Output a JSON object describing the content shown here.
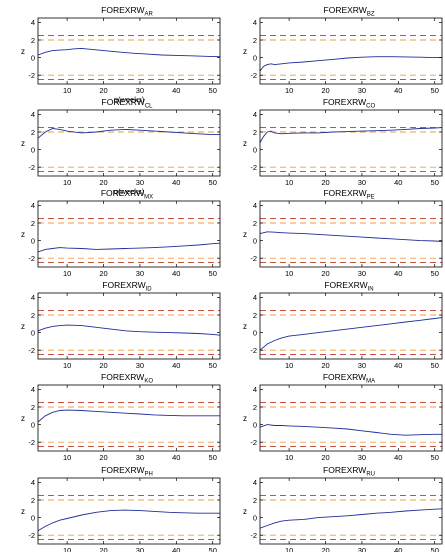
{
  "chart_data": [
    {
      "type": "line",
      "title": "FOREXRW",
      "subscript": "AR",
      "xlabel": "q(weeks)",
      "ylabel": "z",
      "xlim": [
        2,
        52
      ],
      "ylim": [
        -3,
        4.5
      ],
      "x": [
        2,
        4,
        6,
        8,
        10,
        12,
        14,
        16,
        20,
        24,
        28,
        32,
        36,
        40,
        44,
        48,
        52
      ],
      "series": [
        {
          "values": [
            0.3,
            0.6,
            0.8,
            0.85,
            0.9,
            1.0,
            1.05,
            0.95,
            0.8,
            0.65,
            0.5,
            0.4,
            0.3,
            0.25,
            0.2,
            0.15,
            0.1
          ]
        }
      ],
      "bands": [
        2.5,
        2.0,
        -2.0,
        -2.5
      ]
    },
    {
      "type": "line",
      "title": "FOREXRW",
      "subscript": "BZ",
      "xlabel": "",
      "ylabel": "z",
      "xlim": [
        2,
        52
      ],
      "ylim": [
        -3,
        4.5
      ],
      "x": [
        2,
        3,
        4,
        5,
        6,
        8,
        10,
        14,
        18,
        22,
        26,
        30,
        34,
        38,
        42,
        46,
        50,
        52
      ],
      "series": [
        {
          "values": [
            -1.5,
            -1.0,
            -0.8,
            -0.7,
            -0.8,
            -0.7,
            -0.6,
            -0.5,
            -0.35,
            -0.2,
            -0.05,
            0.05,
            0.1,
            0.1,
            0.08,
            0.05,
            0.0,
            0.0
          ]
        }
      ],
      "bands": [
        2.5,
        2.0,
        -2.0,
        -2.5
      ]
    },
    {
      "type": "line",
      "title": "FOREXRW",
      "subscript": "CL",
      "xlabel": "q(weeks)",
      "ylabel": "z",
      "xlim": [
        2,
        52
      ],
      "ylim": [
        -3,
        4.5
      ],
      "x": [
        2,
        4,
        6,
        8,
        10,
        14,
        18,
        22,
        26,
        30,
        34,
        38,
        42,
        46,
        50,
        52
      ],
      "series": [
        {
          "values": [
            1.3,
            2.0,
            2.4,
            2.3,
            2.1,
            1.9,
            2.0,
            2.2,
            2.3,
            2.2,
            2.1,
            2.0,
            1.9,
            1.8,
            1.7,
            1.7
          ]
        }
      ],
      "bands": [
        2.5,
        2.0,
        -2.0,
        -2.5
      ]
    },
    {
      "type": "line",
      "title": "FOREXRW",
      "subscript": "CO",
      "xlabel": "",
      "ylabel": "z",
      "xlim": [
        2,
        52
      ],
      "ylim": [
        -3,
        4.5
      ],
      "x": [
        2,
        3,
        4,
        5,
        6,
        8,
        10,
        14,
        18,
        22,
        26,
        30,
        34,
        38,
        42,
        46,
        50,
        52
      ],
      "series": [
        {
          "values": [
            0.8,
            1.5,
            2.0,
            2.1,
            1.9,
            1.8,
            1.85,
            1.9,
            1.9,
            2.0,
            2.05,
            2.1,
            2.15,
            2.2,
            2.3,
            2.4,
            2.45,
            2.5
          ]
        }
      ],
      "bands": [
        2.5,
        2.0,
        -2.0,
        -2.5
      ]
    },
    {
      "type": "line",
      "title": "FOREXRW",
      "subscript": "MX",
      "xlabel": "",
      "ylabel": "z",
      "xlim": [
        2,
        52
      ],
      "ylim": [
        -3,
        4.5
      ],
      "x": [
        2,
        4,
        6,
        8,
        10,
        14,
        18,
        22,
        26,
        30,
        34,
        38,
        42,
        46,
        50,
        52
      ],
      "series": [
        {
          "values": [
            -1.3,
            -1.0,
            -0.9,
            -0.8,
            -0.85,
            -0.9,
            -1.0,
            -0.95,
            -0.9,
            -0.85,
            -0.8,
            -0.7,
            -0.6,
            -0.5,
            -0.35,
            -0.3
          ]
        }
      ],
      "bands": [
        2.5,
        2.0,
        -2.0,
        -2.5
      ]
    },
    {
      "type": "line",
      "title": "FOREXRW",
      "subscript": "PE",
      "xlabel": "",
      "ylabel": "z",
      "xlim": [
        2,
        52
      ],
      "ylim": [
        -3,
        4.5
      ],
      "x": [
        2,
        4,
        6,
        8,
        10,
        14,
        18,
        22,
        26,
        30,
        34,
        38,
        42,
        46,
        50,
        52
      ],
      "series": [
        {
          "values": [
            0.8,
            1.0,
            0.95,
            0.9,
            0.85,
            0.8,
            0.7,
            0.6,
            0.5,
            0.4,
            0.3,
            0.2,
            0.1,
            0.0,
            -0.05,
            -0.1
          ]
        }
      ],
      "bands": [
        2.5,
        2.0,
        -2.0,
        -2.5
      ]
    },
    {
      "type": "line",
      "title": "FOREXRW",
      "subscript": "ID",
      "xlabel": "",
      "ylabel": "z",
      "xlim": [
        2,
        52
      ],
      "ylim": [
        -3,
        4.5
      ],
      "x": [
        2,
        4,
        6,
        8,
        10,
        14,
        18,
        22,
        26,
        30,
        34,
        38,
        42,
        46,
        50,
        52
      ],
      "series": [
        {
          "values": [
            0.2,
            0.5,
            0.7,
            0.8,
            0.85,
            0.8,
            0.6,
            0.4,
            0.2,
            0.1,
            0.05,
            0.0,
            -0.05,
            -0.1,
            -0.2,
            -0.3
          ]
        }
      ],
      "bands": [
        2.5,
        2.0,
        -2.0,
        -2.5
      ]
    },
    {
      "type": "line",
      "title": "FOREXRW",
      "subscript": "IN",
      "xlabel": "",
      "ylabel": "z",
      "xlim": [
        2,
        52
      ],
      "ylim": [
        -3,
        4.5
      ],
      "x": [
        2,
        4,
        6,
        8,
        10,
        14,
        18,
        22,
        26,
        30,
        34,
        38,
        42,
        46,
        50,
        52
      ],
      "series": [
        {
          "values": [
            -2.0,
            -1.3,
            -0.9,
            -0.6,
            -0.4,
            -0.2,
            0.0,
            0.2,
            0.4,
            0.6,
            0.8,
            1.0,
            1.2,
            1.4,
            1.6,
            1.7
          ]
        }
      ],
      "bands": [
        2.5,
        2.0,
        -2.0,
        -2.5
      ]
    },
    {
      "type": "line",
      "title": "FOREXRW",
      "subscript": "KO",
      "xlabel": "",
      "ylabel": "z",
      "xlim": [
        2,
        52
      ],
      "ylim": [
        -3,
        4.5
      ],
      "x": [
        2,
        4,
        6,
        8,
        10,
        14,
        18,
        22,
        26,
        30,
        34,
        38,
        42,
        46,
        50,
        52
      ],
      "series": [
        {
          "values": [
            0.3,
            1.0,
            1.4,
            1.6,
            1.65,
            1.6,
            1.5,
            1.4,
            1.3,
            1.2,
            1.1,
            1.05,
            1.0,
            1.0,
            1.0,
            1.0
          ]
        }
      ],
      "bands": [
        2.5,
        2.0,
        -2.0,
        -2.5
      ]
    },
    {
      "type": "line",
      "title": "FOREXRW",
      "subscript": "MA",
      "xlabel": "",
      "ylabel": "z",
      "xlim": [
        2,
        52
      ],
      "ylim": [
        -3,
        4.5
      ],
      "x": [
        2,
        4,
        6,
        8,
        10,
        14,
        18,
        22,
        26,
        30,
        34,
        38,
        42,
        46,
        50,
        52
      ],
      "series": [
        {
          "values": [
            -0.3,
            0.0,
            -0.1,
            -0.1,
            -0.15,
            -0.2,
            -0.3,
            -0.4,
            -0.5,
            -0.7,
            -0.9,
            -1.1,
            -1.2,
            -1.15,
            -1.1,
            -1.1
          ]
        }
      ],
      "bands": [
        2.5,
        2.0,
        -2.0,
        -2.5
      ]
    },
    {
      "type": "line",
      "title": "FOREXRW",
      "subscript": "PH",
      "xlabel": "q(weeks)",
      "ylabel": "z",
      "xlim": [
        2,
        52
      ],
      "ylim": [
        -3,
        4.5
      ],
      "x": [
        2,
        4,
        6,
        8,
        10,
        14,
        18,
        22,
        26,
        30,
        34,
        38,
        42,
        46,
        50,
        52
      ],
      "series": [
        {
          "values": [
            -1.5,
            -1.0,
            -0.6,
            -0.3,
            -0.1,
            0.3,
            0.6,
            0.8,
            0.85,
            0.8,
            0.7,
            0.6,
            0.55,
            0.5,
            0.5,
            0.5
          ]
        }
      ],
      "bands": [
        2.5,
        2.0,
        -2.0,
        -2.5
      ]
    },
    {
      "type": "line",
      "title": "FOREXRW",
      "subscript": "RU",
      "xlabel": "q(weeks)",
      "ylabel": "z",
      "xlim": [
        2,
        52
      ],
      "ylim": [
        -3,
        4.5
      ],
      "x": [
        2,
        4,
        6,
        8,
        10,
        14,
        18,
        22,
        26,
        30,
        34,
        38,
        42,
        46,
        50,
        52
      ],
      "series": [
        {
          "values": [
            -1.2,
            -0.9,
            -0.6,
            -0.4,
            -0.3,
            -0.2,
            0.0,
            0.1,
            0.2,
            0.35,
            0.5,
            0.6,
            0.75,
            0.85,
            0.95,
            1.0
          ]
        }
      ],
      "bands": [
        2.5,
        2.0,
        -2.0,
        -2.5
      ]
    }
  ],
  "style": {
    "series_color": "#1f2f9a",
    "band_outer_color": "#c0392b",
    "band_inner_color": "#e8a040",
    "axis_color": "#000000",
    "tick_values_y": [
      -2,
      0,
      2,
      4
    ],
    "tick_values_x": [
      10,
      20,
      30,
      40,
      50
    ]
  }
}
